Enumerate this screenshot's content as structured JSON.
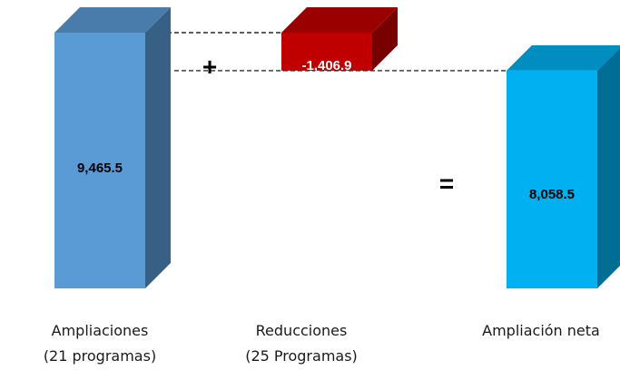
{
  "chart_data": {
    "type": "bar",
    "categories": [
      [
        "Ampliaciones",
        "(21 programas)"
      ],
      [
        "Reducciones",
        "(25 Programas)"
      ],
      [
        "Ampliación neta"
      ]
    ],
    "values": [
      9465.5,
      -1406.9,
      8058.5
    ],
    "value_labels": [
      "9,465.5",
      "-1,406.9",
      "8,058.5"
    ],
    "operators": [
      "+",
      "="
    ],
    "colors": [
      "#5b9bd5",
      "#c00000",
      "#00b0f0"
    ],
    "title": "",
    "xlabel": "",
    "ylabel": "",
    "grid": false,
    "legend": "none"
  }
}
